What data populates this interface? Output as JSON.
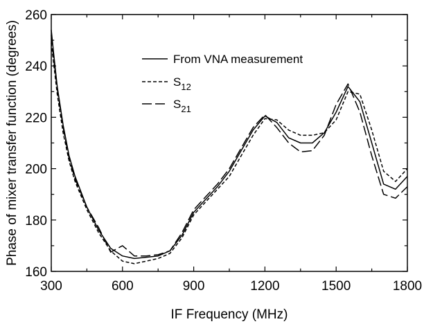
{
  "chart_data": {
    "type": "line",
    "title": "",
    "xlabel": "IF Frequency (MHz)",
    "ylabel": "Phase of mixer transfer function (degrees)",
    "xlim": [
      300,
      1800
    ],
    "ylim": [
      160,
      260
    ],
    "x_ticks": [
      300,
      600,
      900,
      1200,
      1500,
      1800
    ],
    "y_ticks": [
      160,
      180,
      200,
      220,
      240,
      260
    ],
    "grid": false,
    "legend_position": "top-center",
    "legend": [
      {
        "label": "From VNA measurement",
        "sub": "",
        "style": "solid"
      },
      {
        "label": "S",
        "sub": "12",
        "style": "short-dash"
      },
      {
        "label": "S",
        "sub": "21",
        "style": "long-dash"
      }
    ],
    "series": [
      {
        "name": "From VNA measurement",
        "style": "solid",
        "x": [
          300,
          310,
          325,
          350,
          375,
          400,
          450,
          500,
          550,
          600,
          650,
          700,
          750,
          800,
          850,
          900,
          950,
          1000,
          1050,
          1100,
          1150,
          1200,
          1250,
          1300,
          1350,
          1400,
          1450,
          1500,
          1550,
          1600,
          1650,
          1700,
          1750,
          1800
        ],
        "y": [
          254,
          245,
          232,
          217,
          205,
          197,
          185,
          176,
          169,
          166,
          165,
          165.5,
          166,
          168,
          174,
          183,
          188,
          193,
          199,
          207,
          215,
          220.5,
          218,
          212,
          210,
          210,
          214,
          222,
          232,
          226,
          210,
          194,
          192,
          197
        ]
      },
      {
        "name": "S12",
        "style": "short-dash",
        "x": [
          300,
          310,
          325,
          350,
          375,
          400,
          450,
          500,
          550,
          600,
          650,
          700,
          750,
          800,
          850,
          900,
          950,
          1000,
          1050,
          1100,
          1150,
          1200,
          1250,
          1300,
          1350,
          1400,
          1450,
          1500,
          1550,
          1600,
          1650,
          1700,
          1750,
          1800
        ],
        "y": [
          249,
          241,
          229,
          214,
          203,
          195,
          184,
          175,
          168,
          164,
          163,
          164,
          165,
          167,
          173,
          182,
          187,
          192,
          197,
          205,
          213,
          219.5,
          219,
          215,
          213,
          213,
          214,
          219,
          230,
          229,
          215,
          199,
          195,
          200
        ]
      },
      {
        "name": "S21",
        "style": "long-dash",
        "x": [
          300,
          310,
          325,
          350,
          375,
          400,
          450,
          500,
          550,
          600,
          650,
          700,
          750,
          800,
          850,
          900,
          950,
          1000,
          1050,
          1100,
          1150,
          1200,
          1250,
          1300,
          1350,
          1400,
          1450,
          1500,
          1550,
          1600,
          1650,
          1700,
          1750,
          1800
        ],
        "y": [
          252,
          243,
          231,
          216,
          204,
          196,
          185,
          177,
          167.5,
          170,
          166,
          166,
          166.5,
          168,
          175,
          184,
          189,
          194,
          200,
          208,
          216,
          221,
          216,
          210,
          206.5,
          207,
          213,
          225,
          233,
          222,
          205,
          190,
          188.5,
          193
        ]
      }
    ]
  }
}
